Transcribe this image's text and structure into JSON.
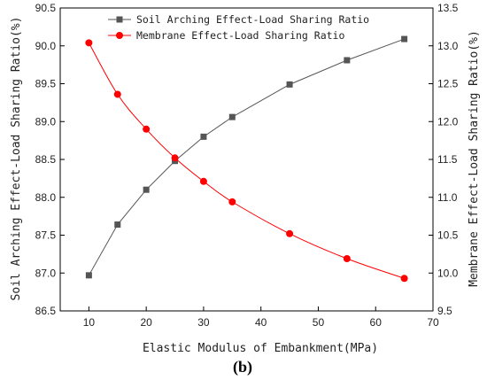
{
  "panel_label": "(b)",
  "chart_data": {
    "type": "line",
    "xlabel": "Elastic Modulus of Embankment(MPa)",
    "ylabel_left": "Soil Arching Effect-Load Sharing Ratio(%)",
    "ylabel_right": "Membrane Effect-Load Sharing Ratio(%)",
    "xlim": [
      5,
      70
    ],
    "ylim_left": [
      86.5,
      90.5
    ],
    "ylim_right": [
      9.5,
      13.5
    ],
    "xticks": [
      "10",
      "20",
      "30",
      "40",
      "50",
      "60",
      "70"
    ],
    "yticks_left": [
      "86.5",
      "87.0",
      "87.5",
      "88.0",
      "88.5",
      "89.0",
      "89.5",
      "90.0",
      "90.5"
    ],
    "yticks_right": [
      "9.5",
      "10.0",
      "10.5",
      "11.0",
      "11.5",
      "12.0",
      "12.5",
      "13.0",
      "13.5"
    ],
    "x": [
      10,
      15,
      20,
      25,
      30,
      35,
      45,
      55,
      65
    ],
    "legend_position": "top-center",
    "series": [
      {
        "name": "Soil Arching Effect-Load Sharing Ratio",
        "axis": "left",
        "marker": "square",
        "color": "#555555",
        "values": [
          86.97,
          87.64,
          88.1,
          88.48,
          88.8,
          89.06,
          89.49,
          89.81,
          90.09
        ]
      },
      {
        "name": "Membrane Effect-Load Sharing Ratio",
        "axis": "right",
        "marker": "circle",
        "color": "#ff0000",
        "values": [
          13.04,
          12.36,
          11.9,
          11.52,
          11.21,
          10.94,
          10.52,
          10.19,
          9.93
        ]
      }
    ]
  }
}
